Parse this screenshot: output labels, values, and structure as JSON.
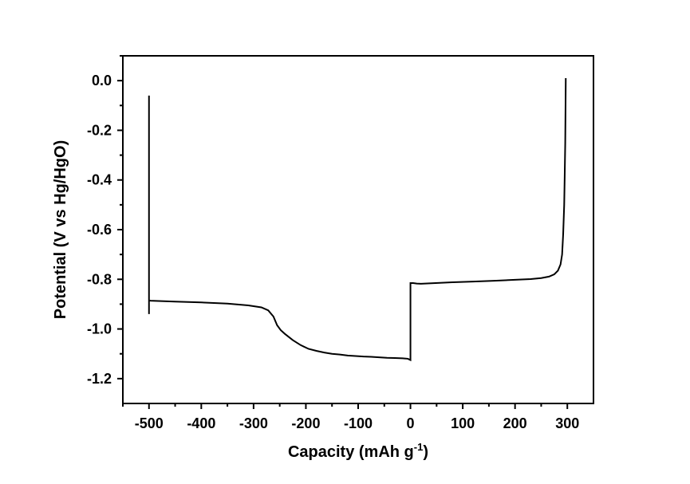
{
  "chart_data": {
    "type": "line",
    "xlabel": "Capacity (mAh g",
    "xlabel_sup": "-1",
    "xlabel_end": ")",
    "ylabel": "Potential (V vs Hg/HgO)",
    "xlim": [
      -550,
      350
    ],
    "ylim": [
      -1.3,
      0.1
    ],
    "x_ticks": [
      -500,
      -400,
      -300,
      -200,
      -100,
      0,
      100,
      200,
      300
    ],
    "x_tick_labels": [
      "-500",
      "-400",
      "-300",
      "-200",
      "-100",
      "0",
      "100",
      "200",
      "300"
    ],
    "y_ticks": [
      0.0,
      -0.2,
      -0.4,
      -0.6,
      -0.8,
      -1.0,
      -1.2
    ],
    "y_tick_labels": [
      "0.0",
      "-0.2",
      "-0.4",
      "-0.6",
      "-0.8",
      "-1.0",
      "-1.2"
    ],
    "grid": false,
    "line_color": "#000000",
    "series": [
      {
        "x": [
          -500,
          -500,
          -500,
          -497,
          -450,
          -400,
          -350,
          -310,
          -285,
          -272,
          -262,
          -255,
          -248,
          -240,
          -225,
          -210,
          -195,
          -180,
          -165,
          -150,
          -135,
          -120,
          -105,
          -90,
          -75,
          -60,
          -45,
          -30,
          -15,
          -5,
          0,
          0,
          5,
          12,
          20,
          40,
          80,
          120,
          160,
          200,
          230,
          250,
          265,
          275,
          282,
          287,
          290,
          292,
          294,
          295,
          296,
          296.5,
          297
        ],
        "y": [
          -0.06,
          -0.94,
          -0.885,
          -0.886,
          -0.89,
          -0.893,
          -0.898,
          -0.905,
          -0.913,
          -0.925,
          -0.95,
          -0.985,
          -1.005,
          -1.02,
          -1.045,
          -1.065,
          -1.08,
          -1.088,
          -1.095,
          -1.1,
          -1.103,
          -1.107,
          -1.109,
          -1.111,
          -1.112,
          -1.114,
          -1.116,
          -1.117,
          -1.118,
          -1.12,
          -1.125,
          -0.815,
          -0.815,
          -0.817,
          -0.818,
          -0.816,
          -0.812,
          -0.809,
          -0.806,
          -0.802,
          -0.799,
          -0.795,
          -0.789,
          -0.78,
          -0.765,
          -0.74,
          -0.7,
          -0.62,
          -0.5,
          -0.38,
          -0.25,
          -0.12,
          0.01
        ]
      }
    ]
  }
}
